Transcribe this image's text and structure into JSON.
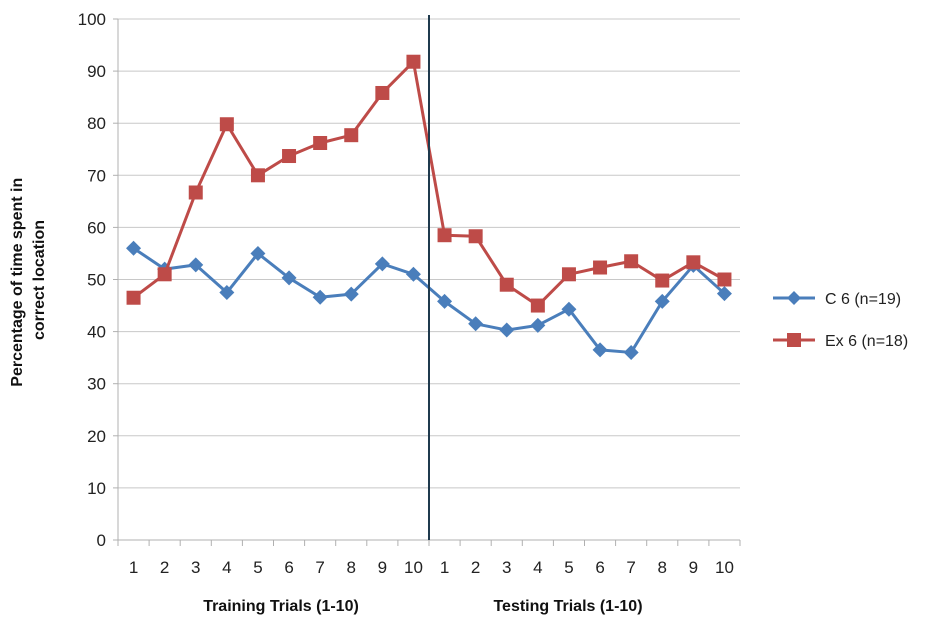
{
  "chart_data": {
    "type": "line",
    "ylabel_lines": [
      "Percentage of time spent in",
      "correct location"
    ],
    "group_labels": [
      "Training Trials (1-10)",
      "Testing Trials (1-10)"
    ],
    "categories": [
      "1",
      "2",
      "3",
      "4",
      "5",
      "6",
      "7",
      "8",
      "9",
      "10",
      "1",
      "2",
      "3",
      "4",
      "5",
      "6",
      "7",
      "8",
      "9",
      "10"
    ],
    "ylim": [
      0,
      100
    ],
    "yticks": [
      0,
      10,
      20,
      30,
      40,
      50,
      60,
      70,
      80,
      90,
      100
    ],
    "grid": true,
    "legend_position": "right",
    "divider_between_categories": [
      10,
      11
    ],
    "series": [
      {
        "name": "C 6 (n=19)",
        "color": "#4a7ebb",
        "marker": "diamond",
        "values": [
          56,
          52,
          52.8,
          47.5,
          55,
          50.3,
          46.6,
          47.2,
          53,
          51,
          45.8,
          41.5,
          40.3,
          41.2,
          44.3,
          36.5,
          36,
          45.8,
          52.7,
          47.3
        ]
      },
      {
        "name": "Ex 6 (n=18)",
        "color": "#be4b48",
        "marker": "square",
        "values": [
          46.5,
          51,
          66.7,
          79.8,
          70,
          73.7,
          76.2,
          77.7,
          85.8,
          91.8,
          58.5,
          58.3,
          49,
          45,
          51,
          52.3,
          53.5,
          49.8,
          53.3,
          50
        ]
      }
    ],
    "divider_color": "#1f3a4d",
    "grid_color": "#c8c8c8"
  }
}
